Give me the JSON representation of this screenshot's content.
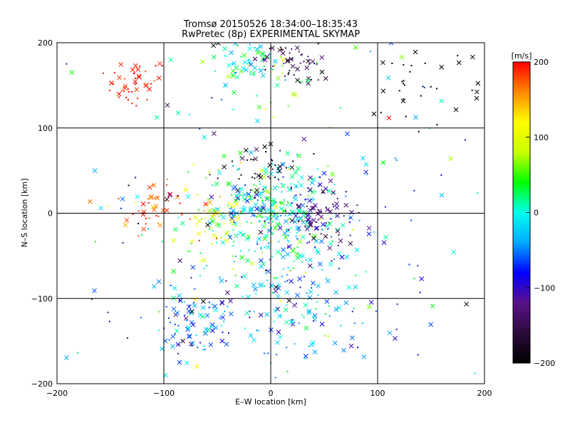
{
  "chart_data": {
    "type": "scatter",
    "title": "Tromsø 20150526 18:34:00–18:35:43",
    "subtitle": "RwPretec (8p) EXPERIMENTAL SKYMAP",
    "xlabel": "E–W location [km]",
    "ylabel": "N–S location [km]",
    "xlim": [
      -200,
      200
    ],
    "ylim": [
      -200,
      200
    ],
    "xticks": [
      "−200",
      "−100",
      "0",
      "100",
      "200"
    ],
    "yticks": [
      "−200",
      "−100",
      "0",
      "100",
      "200"
    ],
    "grid": true,
    "markers": [
      "x",
      "dot"
    ],
    "colorbar": {
      "label": "[m/s]",
      "range": [
        -200,
        200
      ],
      "ticks": [
        "200",
        "100",
        "0",
        "−100",
        "−200"
      ],
      "colormap": [
        "#000000",
        "#2a0a3a",
        "#5a108a",
        "#0000ff",
        "#00aaff",
        "#00ffee",
        "#00ff00",
        "#c8ff00",
        "#ffff00",
        "#ff8800",
        "#ff0000"
      ]
    },
    "clusters": [
      {
        "name": "NW red patch",
        "x": -125,
        "y": 155,
        "spread": 14,
        "n": 45,
        "v_mean": 195,
        "v_sd": 12
      },
      {
        "name": "north-center",
        "x": -15,
        "y": 175,
        "spread": 22,
        "n": 90,
        "v_mean": 5,
        "v_sd": 40
      },
      {
        "name": "north blue/purple",
        "x": 20,
        "y": 178,
        "spread": 12,
        "n": 50,
        "v_mean": -150,
        "v_sd": 30
      },
      {
        "name": "NE black",
        "x": 140,
        "y": 145,
        "spread": 30,
        "n": 35,
        "v_mean": -200,
        "v_sd": 5
      },
      {
        "name": "center green",
        "x": 0,
        "y": 0,
        "spread": 30,
        "n": 320,
        "v_mean": 0,
        "v_sd": 40
      },
      {
        "name": "east blue",
        "x": 45,
        "y": -5,
        "spread": 18,
        "n": 90,
        "v_mean": -120,
        "v_sd": 25
      },
      {
        "name": "west red",
        "x": -110,
        "y": 5,
        "spread": 15,
        "n": 40,
        "v_mean": 180,
        "v_sd": 20
      },
      {
        "name": "west-central yellow",
        "x": -55,
        "y": -10,
        "spread": 18,
        "n": 60,
        "v_mean": 110,
        "v_sd": 35
      },
      {
        "name": "upper-center black",
        "x": -10,
        "y": 50,
        "spread": 15,
        "n": 40,
        "v_mean": -180,
        "v_sd": 25
      },
      {
        "name": "SW cyan",
        "x": -75,
        "y": -130,
        "spread": 20,
        "n": 90,
        "v_mean": -60,
        "v_sd": 40
      },
      {
        "name": "south-center cyan",
        "x": 20,
        "y": -100,
        "spread": 35,
        "n": 150,
        "v_mean": -30,
        "v_sd": 40
      },
      {
        "name": "scattered background",
        "x": 0,
        "y": 0,
        "spread": 110,
        "n": 220,
        "v_mean": -20,
        "v_sd": 100
      }
    ]
  }
}
